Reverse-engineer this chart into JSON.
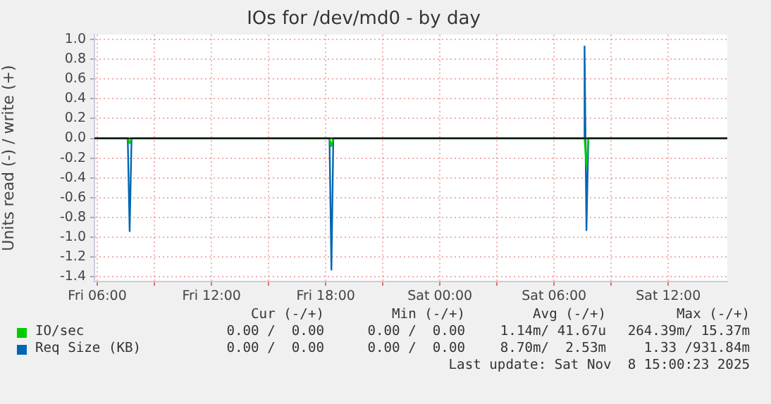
{
  "chart_data": {
    "type": "line",
    "title": "IOs for /dev/md0 - by day",
    "ylabel": "Units read (-) / write (+)",
    "xlim": [
      "2025-11-07T05:51",
      "2025-11-08T15:06"
    ],
    "xticks": [
      {
        "value": "2025-11-07T06:00",
        "label": "Fri 06:00"
      },
      {
        "value": "2025-11-07T09:00",
        "label": null
      },
      {
        "value": "2025-11-07T12:00",
        "label": "Fri 12:00"
      },
      {
        "value": "2025-11-07T15:00",
        "label": null
      },
      {
        "value": "2025-11-07T18:00",
        "label": "Fri 18:00"
      },
      {
        "value": "2025-11-07T21:00",
        "label": null
      },
      {
        "value": "2025-11-08T00:00",
        "label": "Sat 00:00"
      },
      {
        "value": "2025-11-08T03:00",
        "label": null
      },
      {
        "value": "2025-11-08T06:00",
        "label": "Sat 06:00"
      },
      {
        "value": "2025-11-08T09:00",
        "label": null
      },
      {
        "value": "2025-11-08T12:00",
        "label": "Sat 12:00"
      }
    ],
    "ylim": [
      -1.45,
      1.05
    ],
    "yticks": [
      {
        "value": -1.4,
        "label": "-1.4"
      },
      {
        "value": -1.2,
        "label": "-1.2"
      },
      {
        "value": -1,
        "label": "-1.0"
      },
      {
        "value": -0.8,
        "label": "-0.8"
      },
      {
        "value": -0.6,
        "label": "-0.6"
      },
      {
        "value": -0.4,
        "label": "-0.4"
      },
      {
        "value": -0.2,
        "label": "-0.2"
      },
      {
        "value": 0,
        "label": "0.0"
      },
      {
        "value": 0.2,
        "label": "0.2"
      },
      {
        "value": 0.4,
        "label": "0.4"
      },
      {
        "value": 0.6,
        "label": "0.6"
      },
      {
        "value": 0.8,
        "label": "0.8"
      },
      {
        "value": 1,
        "label": "1.0"
      }
    ],
    "grid": true,
    "legend": "bottom",
    "marker": "none",
    "line_style": "solid",
    "ref_lines": [
      {
        "axis": "y",
        "value": 0,
        "color": "#000000"
      }
    ],
    "series": [
      {
        "name": "IO/sec",
        "color": "#00cc00",
        "x": [
          "2025-11-07T05:51",
          "2025-11-07T07:36",
          "2025-11-07T07:42",
          "2025-11-07T07:48",
          "2025-11-07T18:12",
          "2025-11-07T18:18",
          "2025-11-07T18:24",
          "2025-11-08T07:36",
          "2025-11-08T07:42",
          "2025-11-08T07:48",
          "2025-11-08T15:06"
        ],
        "values": [
          0,
          0,
          -0.05,
          0,
          0,
          -0.08,
          0,
          0,
          -0.28,
          0,
          0
        ]
      },
      {
        "name": "Req Size (KB)",
        "color": "#0066b3",
        "x": [
          "2025-11-07T05:51",
          "2025-11-07T07:36",
          "2025-11-07T07:42",
          "2025-11-07T07:48",
          "2025-11-07T18:12",
          "2025-11-07T18:18",
          "2025-11-07T18:24",
          "2025-11-08T07:33",
          "2025-11-08T07:36",
          "2025-11-08T07:42",
          "2025-11-08T07:48",
          "2025-11-08T15:06"
        ],
        "values": [
          0,
          0,
          -0.94,
          0,
          0,
          -1.33,
          0,
          0,
          0.93,
          -0.93,
          0,
          0
        ]
      }
    ],
    "annotations": [
      "Cur (-/+)",
      "Min (-/+)",
      "Avg (-/+)",
      "Max (-/+)",
      "0.00 /  0.00",
      "0.00 /  0.00",
      "1.14m/ 41.67u",
      "264.39m/ 15.37m",
      "0.00 /  0.00",
      "0.00 /  0.00",
      "8.70m/  2.53m",
      "1.33 /931.84m",
      "Last update: Sat Nov  8 15:00:23 2025"
    ]
  }
}
